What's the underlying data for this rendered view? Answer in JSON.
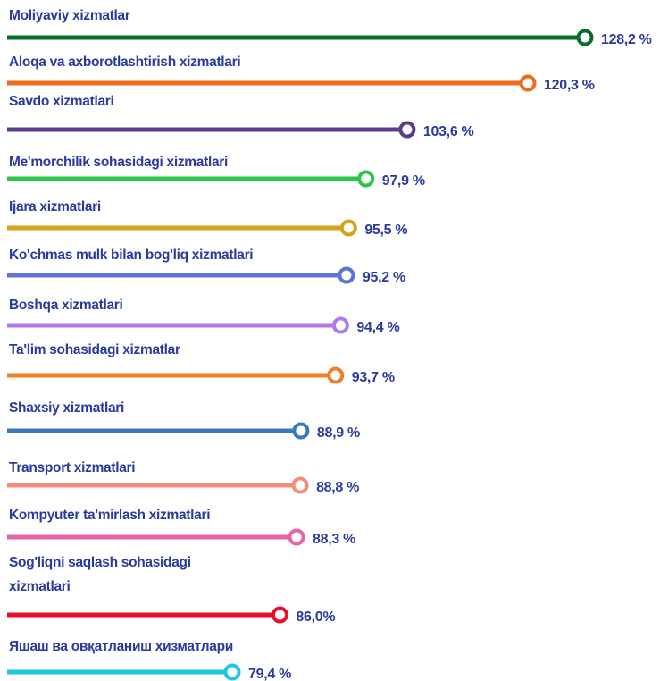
{
  "chart_data": {
    "type": "lollipop",
    "categories": [
      "Moliyaviy xizmatlar",
      "Aloqa va axborotlashtirish xizmatlari",
      "Savdo xizmatlari",
      "Me'morchilik sohasidagi xizmatlari",
      "Ijara xizmatlari",
      "Ko'chmas mulk bilan bog'liq xizmatlari",
      "Boshqa xizmatlari",
      "Ta'lim sohasidagi xizmatlar",
      "Shaxsiy xizmatlari",
      "Transport xizmatlari",
      "Kompyuter ta'mirlash xizmatlari",
      "Sog'liqni saqlash sohasidagi xizmatlari",
      "Яшаш ва овқатланиш хизматлари"
    ],
    "values": [
      128.2,
      120.3,
      103.6,
      97.9,
      95.5,
      95.2,
      94.4,
      93.7,
      88.9,
      88.8,
      88.3,
      86.0,
      79.4
    ],
    "value_labels": [
      "128,2 %",
      "120,3 %",
      "103,6 %",
      "97,9 %",
      "95,5 %",
      "95,2 %",
      "94,4 %",
      "93,7 %",
      "88,9 %",
      "88,8 %",
      "88,3 %",
      "86,0%",
      "79,4 %"
    ],
    "colors": [
      "#0b6b2a",
      "#f06a1e",
      "#5a3d8a",
      "#2ec44a",
      "#d4a21c",
      "#5b74d6",
      "#b07ae8",
      "#f07f2a",
      "#3a7ab8",
      "#f48c78",
      "#e763a8",
      "#e8102a",
      "#1cc8e0"
    ]
  }
}
